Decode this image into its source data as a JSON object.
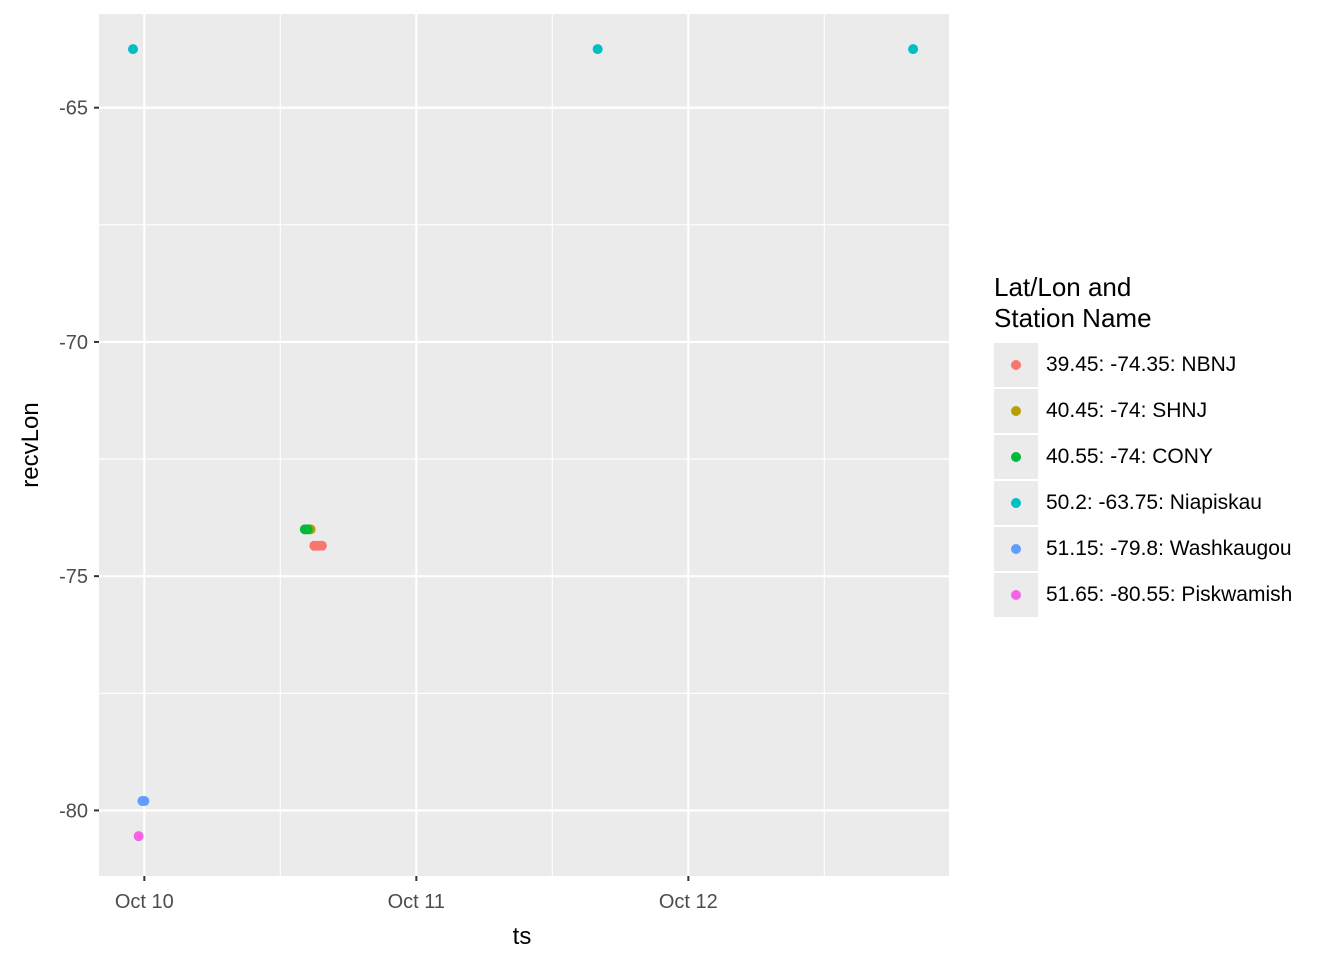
{
  "chart_data": {
    "type": "scatter",
    "title": "",
    "xlabel": "ts",
    "ylabel": "recvLon",
    "x_ticks": [
      "Oct 10",
      "Oct 11",
      "Oct 12"
    ],
    "y_ticks": [
      -65,
      -70,
      -75,
      -80
    ],
    "xlim": [
      "Oct 9 20:00",
      "Oct 12 23:00"
    ],
    "ylim": [
      -81.4,
      -63.0
    ],
    "grid": true,
    "legend": {
      "title": "Lat/Lon and\nStation Name",
      "position": "right"
    },
    "series": [
      {
        "name": "39.45: -74.35: NBNJ",
        "color": "#F8766D",
        "points": [
          {
            "x": "Oct 10 15:00",
            "y": -74.35
          },
          {
            "x": "Oct 10 15:20",
            "y": -74.35
          },
          {
            "x": "Oct 10 15:40",
            "y": -74.35
          }
        ]
      },
      {
        "name": "40.45: -74: SHNJ",
        "color": "#B79F00",
        "points": [
          {
            "x": "Oct 10 14:40",
            "y": -74.0
          }
        ]
      },
      {
        "name": "40.55: -74: CONY",
        "color": "#00BA38",
        "points": [
          {
            "x": "Oct 10 14:10",
            "y": -74.0
          },
          {
            "x": "Oct 10 14:25",
            "y": -74.0
          }
        ]
      },
      {
        "name": "50.2: -63.75: Niapiskau",
        "color": "#00BFC4",
        "points": [
          {
            "x": "Oct 9 23:00",
            "y": -63.75
          },
          {
            "x": "Oct 11 16:00",
            "y": -63.75
          },
          {
            "x": "Oct 12 19:50",
            "y": -63.75
          }
        ]
      },
      {
        "name": "51.15: -79.8: Washkaugou",
        "color": "#619CFF",
        "points": [
          {
            "x": "Oct 9 23:50",
            "y": -79.8
          },
          {
            "x": "Oct 10 00:00",
            "y": -79.8
          }
        ]
      },
      {
        "name": "51.65: -80.55: Piskwamish",
        "color": "#F564E3",
        "points": [
          {
            "x": "Oct 9 23:30",
            "y": -80.55
          }
        ]
      }
    ]
  }
}
